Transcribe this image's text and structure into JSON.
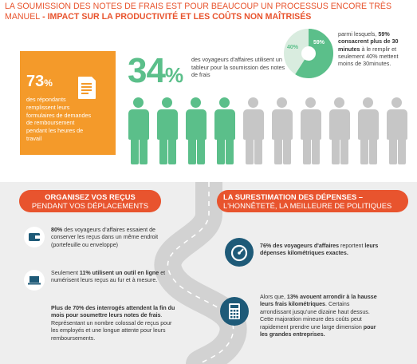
{
  "headline": {
    "line1": "LA SOUMISSION DES NOTES DE FRAIS EST POUR BEAUCOUP UN PROCESSUS ENCORE TRÈS",
    "line2_prefix": "MANUEL",
    "line2_bold": " - IMPACT SUR LA PRODUCTIVITÉ ET LES COÛTS NON MAÎTRISÉS"
  },
  "stat73": {
    "value": "73",
    "unit": "%",
    "text": "des répondants remplissent leurs formulaires de demandes de remboursement pendant les heures de travail"
  },
  "stat34": {
    "value": "34",
    "unit": "%",
    "text": "des voyageurs d'affaires utilisent un tableur pour la soumission des notes de frais"
  },
  "donut": {
    "share_large": 59,
    "share_small": 40,
    "label_large": "59%",
    "label_small": "40%",
    "text_pre": "parmi lesquels, ",
    "text_bold": "59% consacrent plus de 30 minutes",
    "text_post": " à le remplir et seulement 40% mettent moins de 30minutes.",
    "color_large": "#5bbf8a",
    "color_small": "#d9ecdf"
  },
  "people": {
    "total": 10,
    "highlighted": 4,
    "color_highlight": "#5bbf8a",
    "color_rest": "#c6c6c6"
  },
  "left_section": {
    "banner_line1": "ORGANISEZ VOS REÇUS",
    "banner_line2": "PENDANT VOS DÉPLACEMENTS",
    "items": [
      {
        "icon": "wallet-icon",
        "bold": "80%",
        "text": " des voyageurs d'affaires essaient de conserver les reçus dans un même endroit (portefeuille ou enveloppe)"
      },
      {
        "icon": "laptop-icon",
        "pre": "Seulement ",
        "bold": "11% utilisent un outil en ligne",
        "text": " et numérisent leurs reçus au fur et à mesure."
      },
      {
        "icon": "",
        "bold": "Plus de 70% des interrogés attendent la fin du mois pour soumettre leurs notes de frais",
        "text": ". Représentant un nombre colossal de reçus pour les employés et une longue attente pour leurs remboursements."
      }
    ]
  },
  "right_section": {
    "banner_line1": "LA SURESTIMATION DES DÉPENSES –",
    "banner_line2": "L'HONNÊTETÉ, LA MEILLEURE DE POLITIQUES",
    "items": [
      {
        "icon": "speedometer-icon",
        "bold": "76% des voyageurs d'affaires",
        "text": " reportent ",
        "bold2": "leurs dépenses kilométriques exactes."
      },
      {
        "icon": "calculator-icon",
        "pre": "Alors que, ",
        "bold": "13% avouent arrondir à la hausse leurs frais kilométriques",
        "text": ". Certains arrondissant jusqu'une dizaine haut dessus.",
        "extra_pre": "Cette majoration mineure des coûts peut rapidement prendre une large dimension ",
        "extra_bold": "pour les grandes entreprises."
      }
    ]
  },
  "colors": {
    "accent_orange": "#e8542e",
    "box_orange": "#f49a2a",
    "green": "#5bbf8a",
    "navy": "#1e5a78",
    "road": "#d2d2d2"
  }
}
